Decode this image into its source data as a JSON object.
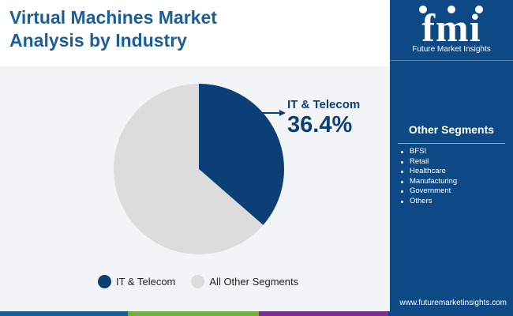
{
  "header": {
    "title_line1": "Virtual Machines Market",
    "title_line2": "Analysis by Industry"
  },
  "brand": {
    "logo_text": "fmi",
    "logo_subtitle": "Future Market Insights",
    "website": "www.futuremarketinsights.com"
  },
  "sidebar": {
    "segments_title": "Other Segments",
    "segments": [
      "BFSI",
      "Retail",
      "Healthcare",
      "Manufacturing",
      "Government",
      "Others"
    ]
  },
  "callout": {
    "label": "IT & Telecom",
    "value": "36.4%"
  },
  "colors": {
    "it_telecom": "#0d3f77",
    "other": "#dcdcdc",
    "title": "#1a5f9b",
    "sidebar_bg": "#0d4a85",
    "bottom_bar": [
      "#1a5f9b",
      "#6fb33e",
      "#7a2f8f",
      "#0d4a85"
    ]
  },
  "chart_data": {
    "type": "pie",
    "title": "",
    "slices": [
      {
        "label": "IT & Telecom",
        "value": 36.4
      },
      {
        "label": "All Other Segments",
        "value": 63.6
      }
    ],
    "legend_position": "bottom"
  }
}
